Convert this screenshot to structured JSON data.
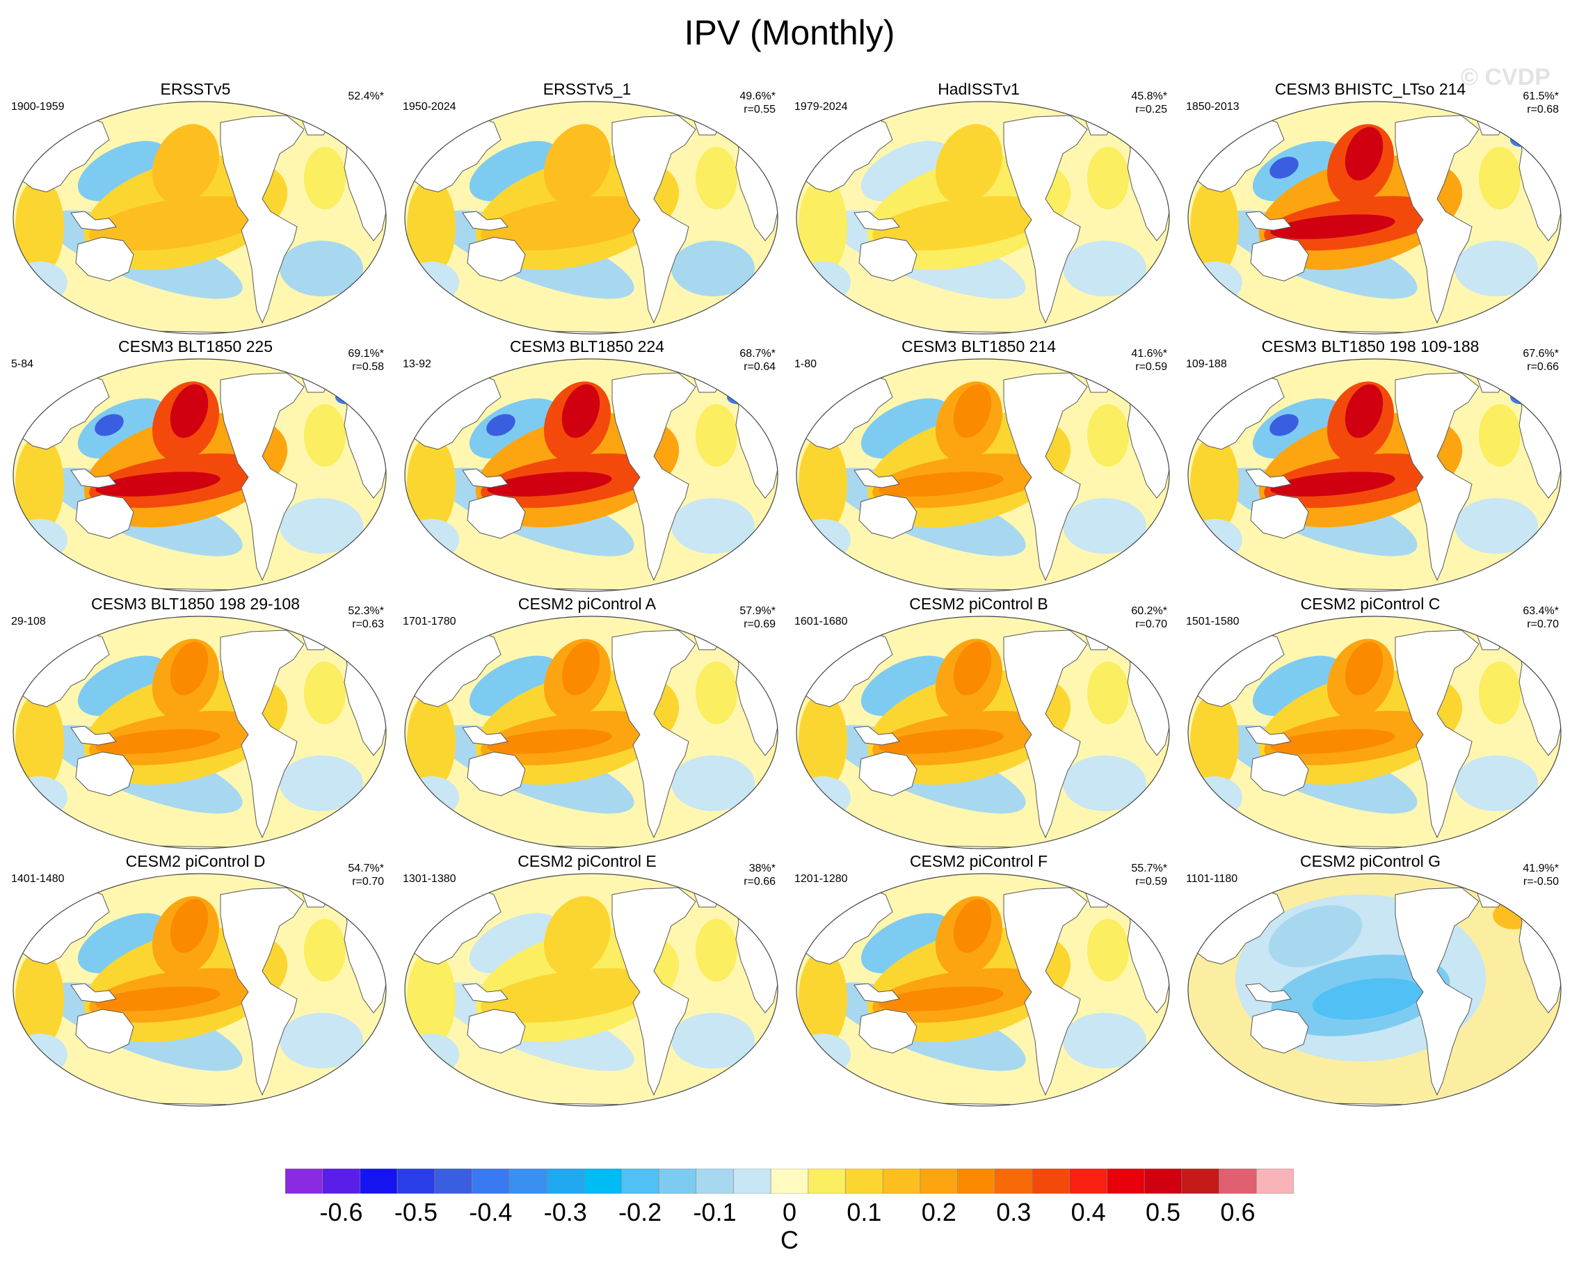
{
  "title": "IPV (Monthly)",
  "watermark": "© CVDP",
  "panels": [
    {
      "title": "ERSSTv5",
      "period": "1900-1959",
      "pct": "52.4%*",
      "r": "",
      "pattern": "obs"
    },
    {
      "title": "ERSSTv5_1",
      "period": "1950-2024",
      "pct": "49.6%*",
      "r": "r=0.55",
      "pattern": "obs"
    },
    {
      "title": "HadISSTv1",
      "period": "1979-2024",
      "pct": "45.8%*",
      "r": "r=0.25",
      "pattern": "weak"
    },
    {
      "title": "CESM3 BHISTC_LTso 214",
      "period": "1850-2013",
      "pct": "61.5%*",
      "r": "r=0.68",
      "pattern": "strong"
    },
    {
      "title": "CESM3 BLT1850 225",
      "period": "5-84",
      "pct": "69.1%*",
      "r": "r=0.58",
      "pattern": "strong"
    },
    {
      "title": "CESM3 BLT1850 224",
      "period": "13-92",
      "pct": "68.7%*",
      "r": "r=0.64",
      "pattern": "strong"
    },
    {
      "title": "CESM3 BLT1850 214",
      "period": "1-80",
      "pct": "41.6%*",
      "r": "r=0.59",
      "pattern": "medium"
    },
    {
      "title": "CESM3 BLT1850 198 109-188",
      "period": "109-188",
      "pct": "67.6%*",
      "r": "r=0.66",
      "pattern": "strong"
    },
    {
      "title": "CESM3 BLT1850 198 29-108",
      "period": "29-108",
      "pct": "52.3%*",
      "r": "r=0.63",
      "pattern": "medium"
    },
    {
      "title": "CESM2 piControl A",
      "period": "1701-1780",
      "pct": "57.9%*",
      "r": "r=0.69",
      "pattern": "medium"
    },
    {
      "title": "CESM2 piControl B",
      "period": "1601-1680",
      "pct": "60.2%*",
      "r": "r=0.70",
      "pattern": "medium"
    },
    {
      "title": "CESM2 piControl C",
      "period": "1501-1580",
      "pct": "63.4%*",
      "r": "r=0.70",
      "pattern": "medium"
    },
    {
      "title": "CESM2 piControl D",
      "period": "1401-1480",
      "pct": "54.7%*",
      "r": "r=0.70",
      "pattern": "medium"
    },
    {
      "title": "CESM2 piControl E",
      "period": "1301-1380",
      "pct": "38%*",
      "r": "r=0.66",
      "pattern": "weak"
    },
    {
      "title": "CESM2 piControl F",
      "period": "1201-1280",
      "pct": "55.7%*",
      "r": "r=0.59",
      "pattern": "medium"
    },
    {
      "title": "CESM2 piControl G",
      "period": "1101-1180",
      "pct": "41.9%*",
      "r": "r=-0.50",
      "pattern": "negative"
    }
  ],
  "colorbar": {
    "tick_labels": [
      "-0.6",
      "-0.5",
      "-0.4",
      "-0.3",
      "-0.2",
      "-0.1",
      "0",
      "0.1",
      "0.2",
      "0.3",
      "0.4",
      "0.5",
      "0.6"
    ],
    "unit": "C",
    "colors": [
      "#8a2be2",
      "#5a1ee8",
      "#1414f0",
      "#2a3ee8",
      "#3a5ee0",
      "#3a7af0",
      "#3a90f0",
      "#20a8f0",
      "#00bcf5",
      "#50c0f5",
      "#7ecbf2",
      "#a8d8f0",
      "#c8e6f4",
      "#fffbc0",
      "#fbee60",
      "#fcd630",
      "#fdbf20",
      "#fca510",
      "#fb8a00",
      "#f86a08",
      "#f34a0c",
      "#fa2010",
      "#e8000a",
      "#d00010",
      "#c41a1a",
      "#e06070",
      "#f8b4b8"
    ]
  }
}
